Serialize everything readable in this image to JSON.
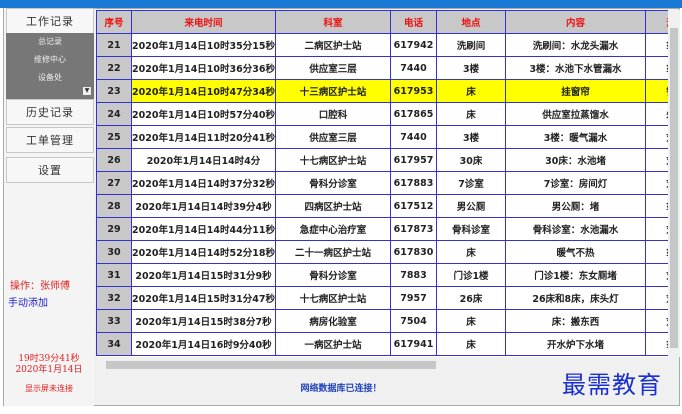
{
  "sidebar": {
    "work_records": "工作记录",
    "sub_items": [
      "总记录",
      "维修中心",
      "设备处"
    ],
    "history": "历史记录",
    "work_orders": "工单管理",
    "settings": "设置",
    "operator": "操作：张师傅",
    "manual_add": "手动添加",
    "time": "19时39分41秒",
    "date": "2020年1月14日",
    "display_status": "显示屏未连接"
  },
  "table": {
    "headers": [
      "序号",
      "来电时间",
      "科室",
      "电话",
      "地点",
      "内容",
      "派"
    ],
    "selected_row": "23",
    "rows": [
      [
        "21",
        "2020年1月14日10时35分15秒",
        "二病区护士站",
        "617942",
        "洗刷间",
        "洗刷间：水龙头漏水",
        "翁"
      ],
      [
        "22",
        "2020年1月14日10时36分36秒",
        "供应室三层",
        "7440",
        "3楼",
        "3楼：水池下水管漏水",
        "翁"
      ],
      [
        "23",
        "2020年1月14日10时47分34秒",
        "十三病区护士站",
        "617953",
        "床",
        "挂窗帘",
        "铉"
      ],
      [
        "24",
        "2020年1月14日10时57分40秒",
        "口腔科",
        "617865",
        "床",
        "供应室拉蒸馏水",
        "朱"
      ],
      [
        "25",
        "2020年1月14日11时20分41秒",
        "供应室三层",
        "7440",
        "3楼",
        "3楼：暖气漏水",
        "刘"
      ],
      [
        "26",
        "2020年1月14日14时4分",
        "十七病区护士站",
        "617957",
        "30床",
        "30床：水池堵",
        "刘"
      ],
      [
        "27",
        "2020年1月14日14时37分32秒",
        "骨科分诊室",
        "617883",
        "7诊室",
        "7诊室：房间灯",
        "刘"
      ],
      [
        "28",
        "2020年1月14日14时39分4秒",
        "四病区护士站",
        "617512",
        "男公厕",
        "男公厕：堵",
        "翁"
      ],
      [
        "29",
        "2020年1月14日14时44分11秒",
        "急症中心治疗室",
        "617873",
        "骨科诊室",
        "骨科诊室：水池漏水",
        "刘"
      ],
      [
        "30",
        "2020年1月14日14时52分18秒",
        "二十一病区护士站",
        "617830",
        "床",
        "暖气不热",
        "翁"
      ],
      [
        "31",
        "2020年1月14日15时31分9秒",
        "骨科分诊室",
        "7883",
        "门诊1楼",
        "门诊1楼：东女厕堵",
        "刘"
      ],
      [
        "32",
        "2020年1月14日15时31分47秒",
        "十七病区护士站",
        "7957",
        "26床",
        "26床和8床，床头灯",
        "刘"
      ],
      [
        "33",
        "2020年1月14日15时38分7秒",
        "病房化验室",
        "7504",
        "床",
        "床：搬东西",
        "刘"
      ],
      [
        "34",
        "2020年1月14日16时9分40秒",
        "一病区护士站",
        "617941",
        "床",
        "开水炉下水堵",
        "翁"
      ]
    ]
  },
  "status": "网络数据库已连接！",
  "watermark": "最需教育",
  "colors": {
    "header_text": "#ee1111",
    "grid": "#3333cc",
    "selected": "#ffff00",
    "title_bar": "#1979d4"
  }
}
